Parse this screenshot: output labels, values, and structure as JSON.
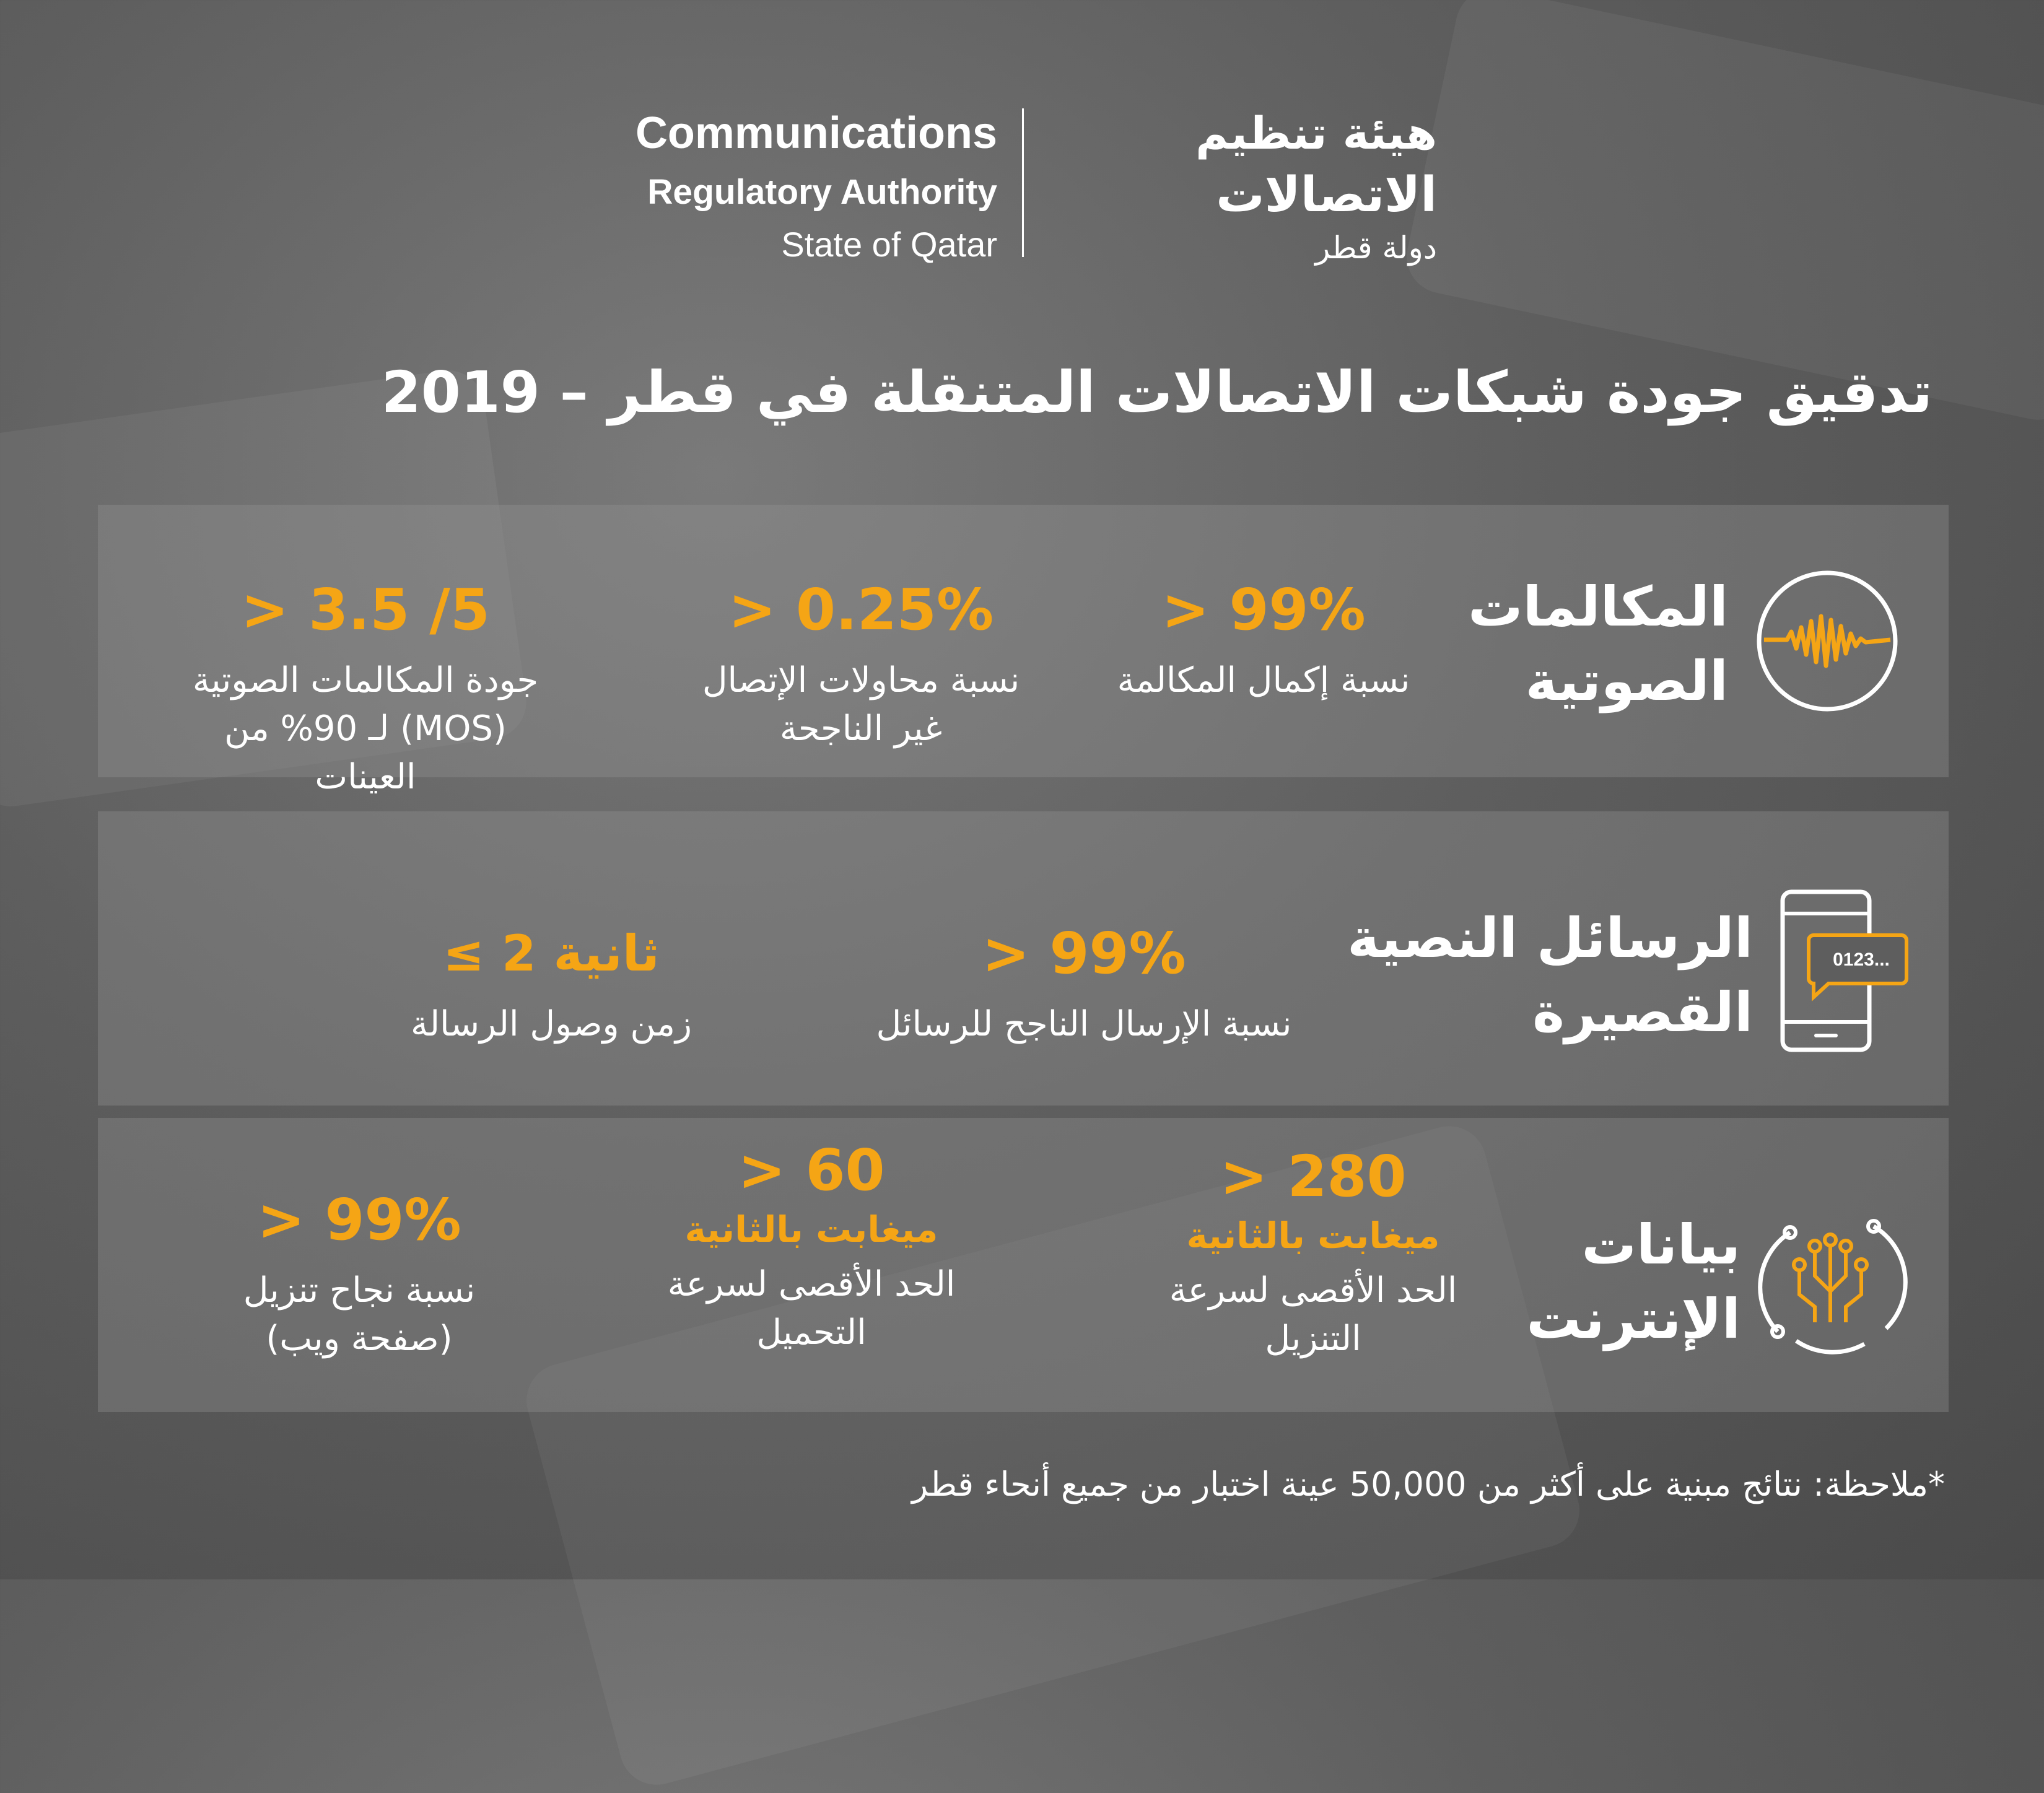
{
  "logo": {
    "en_line1": "Communications",
    "en_line2": "Regulatory Authority",
    "en_line3": "State of Qatar",
    "ar_line1": "هيئة تنظيم",
    "ar_line2": "الاتصالات",
    "ar_line3": "دولة قطر"
  },
  "title": "تدقيق جودة شبكات الاتصالات المتنقلة في قطر – 2019",
  "colors": {
    "accent": "#f5a515",
    "text": "#ffffff",
    "background": "#5e5e5e"
  },
  "voice": {
    "icon": "sound-wave-icon",
    "title_line1": "المكالمات",
    "title_line2": "الصوتية",
    "m1_value": "> 99%",
    "m1_label": "نسبة إكمال المكالمة",
    "m2_value": "> 0.25%",
    "m2_label1": "نسبة محاولات الإتصال",
    "m2_label2": "غير الناجحة",
    "m3_value": "> 3.5 /5",
    "m3_label1": "جودة المكالمات الصوتية",
    "m3_label2": "(MOS) لـ 90% من العينات"
  },
  "sms": {
    "icon": "smartphone-message-icon",
    "bubble_text": "0123...",
    "title_line1": "الرسائل النصية",
    "title_line2": "القصيرة",
    "m1_value": "> 99%",
    "m1_label": "نسبة الإرسال الناجح للرسائل",
    "m2_value": "≤ 2 ثانية",
    "m2_label": "زمن وصول الرسالة"
  },
  "data": {
    "icon": "circuit-brain-icon",
    "title_line1": "بيانات",
    "title_line2": "الإنترنت",
    "m1_value": "> 280",
    "m1_unit": "ميغابت بالثانية",
    "m1_label1": "الحد الأقصى لسرعة",
    "m1_label2": "التنزيل",
    "m2_value": "> 60",
    "m2_unit": "ميغابت بالثانية",
    "m2_label1": "الحد الأقصى لسرعة",
    "m2_label2": "التحميل",
    "m3_value": "> 99%",
    "m3_label1": "نسبة نجاح تنزيل",
    "m3_label2": "(صفحة ويب)"
  },
  "note": "*ملاحظة: نتائج مبنية على أكثر من 50,000 عينة اختبار من جميع أنحاء قطر"
}
